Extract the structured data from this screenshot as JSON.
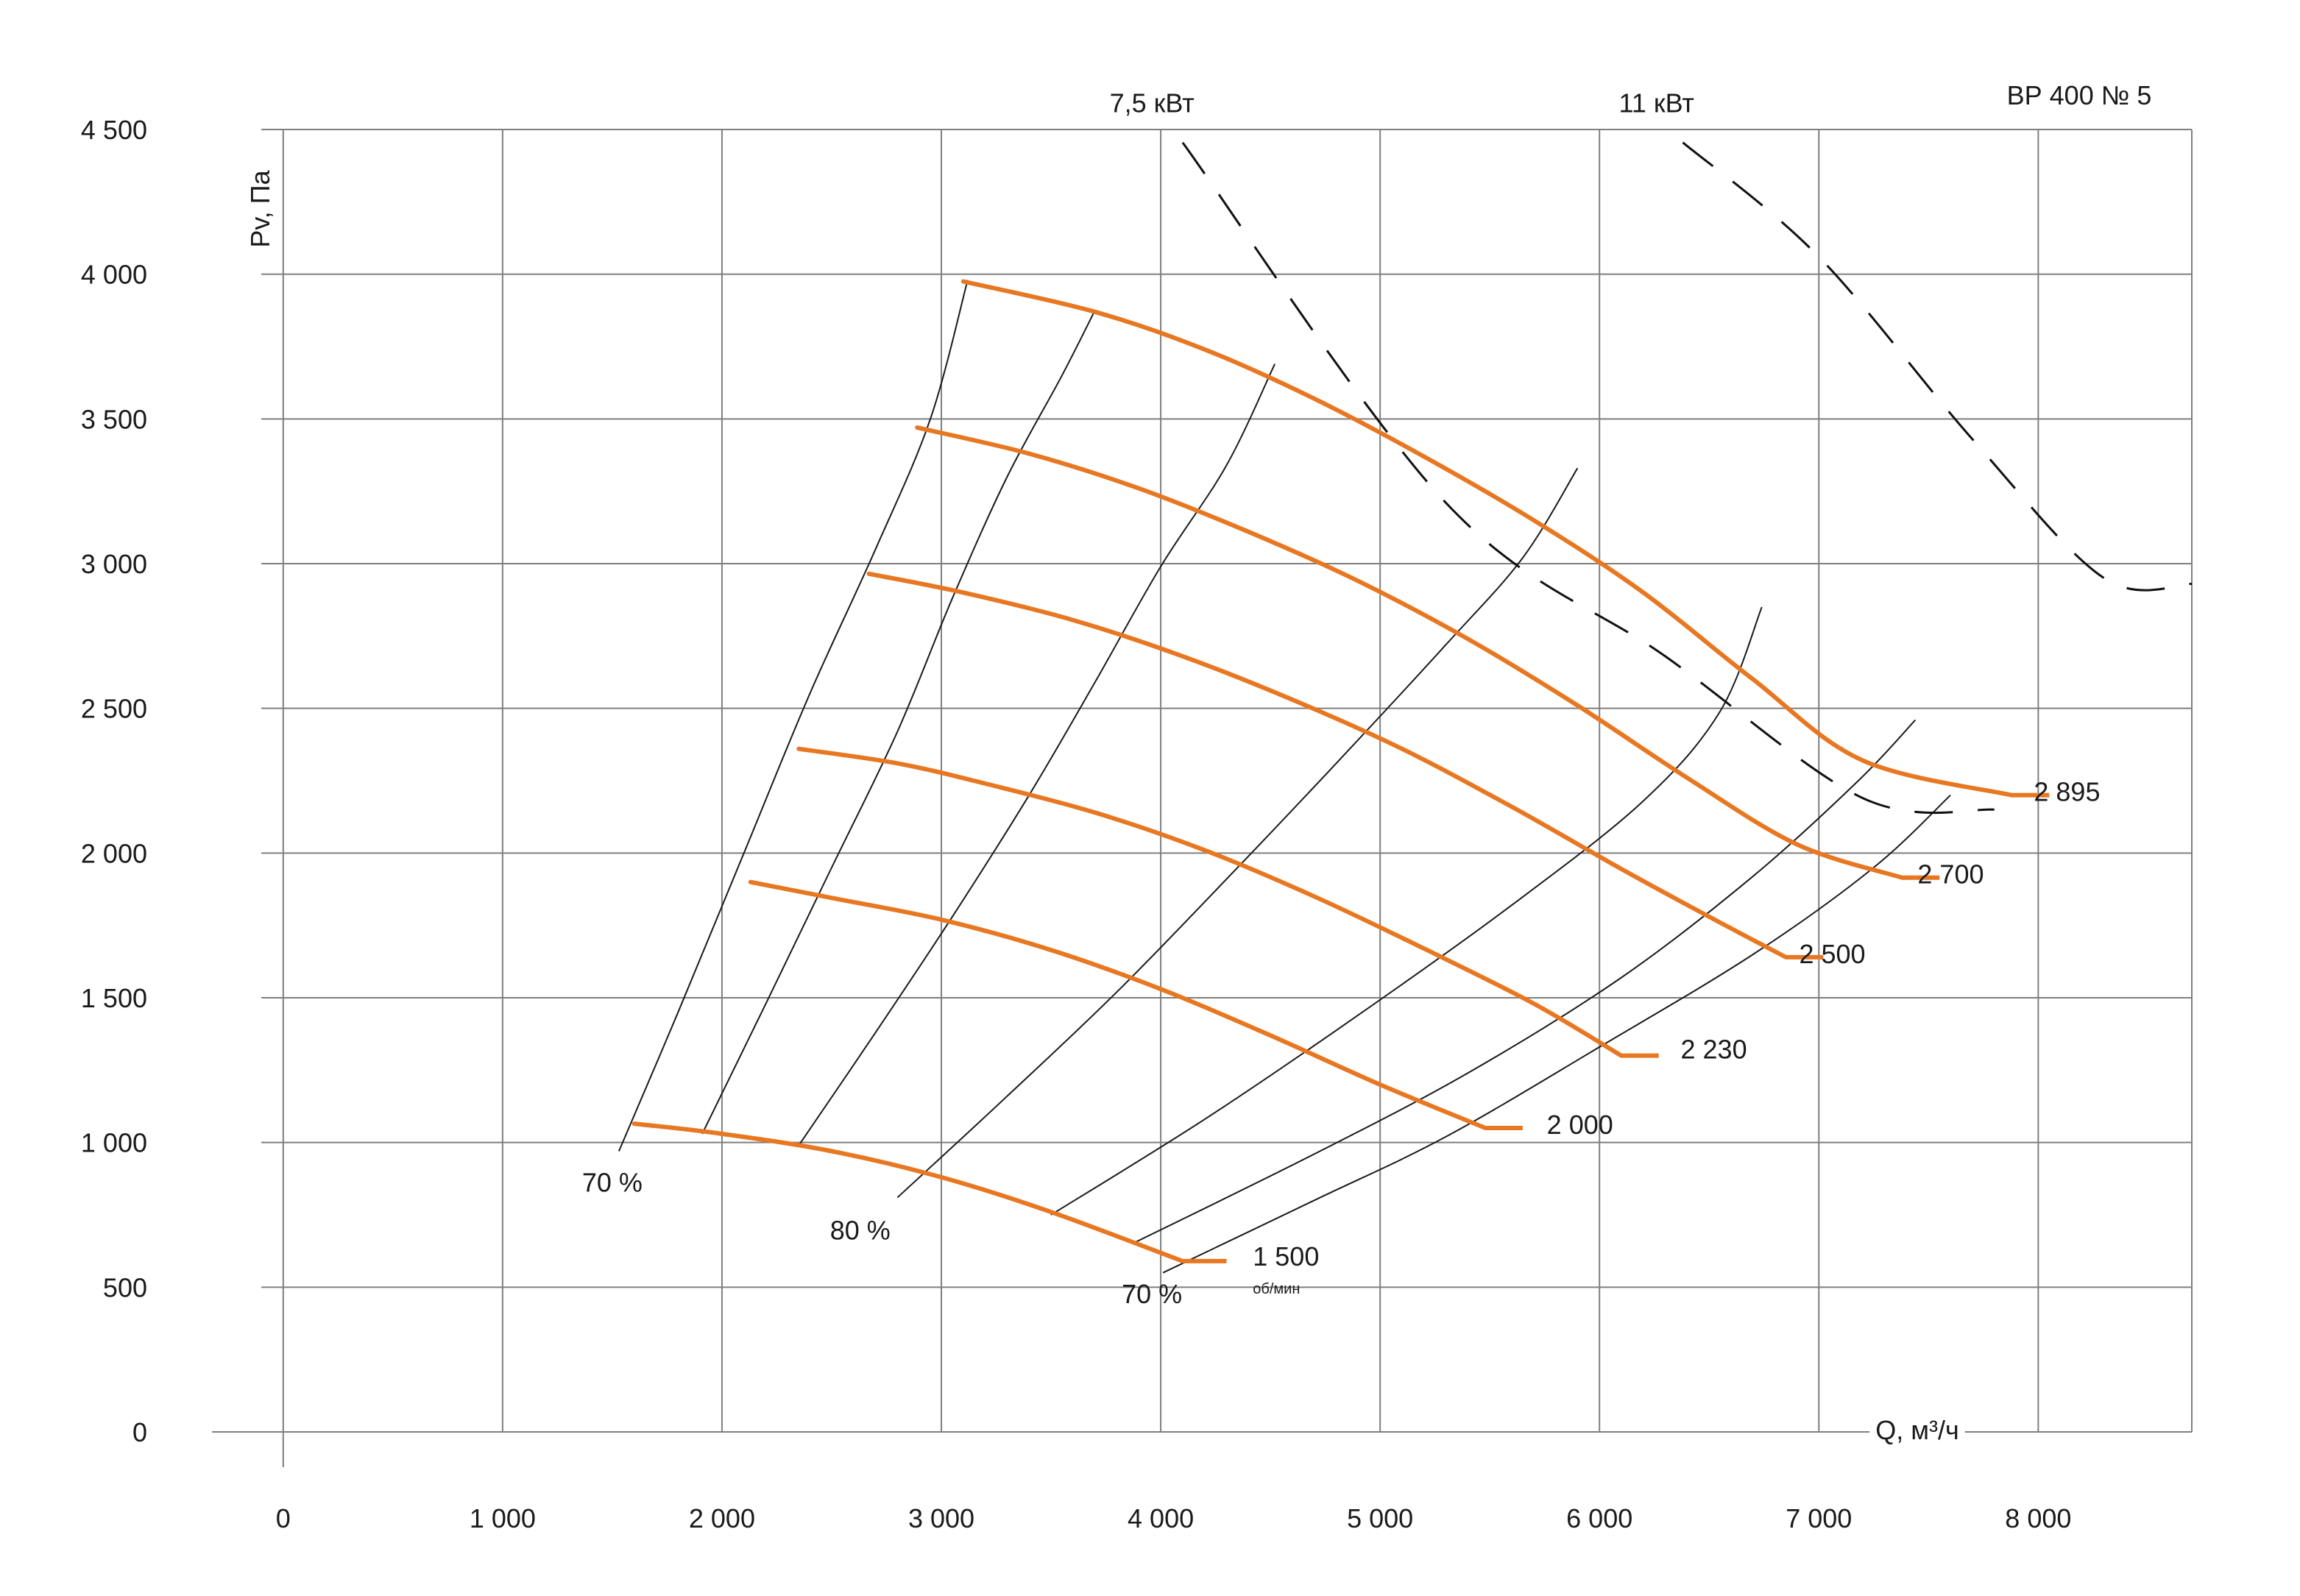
{
  "chart_data": {
    "type": "line",
    "title": "ВР 400 № 5",
    "xlabel": "Q, м³/ч",
    "ylabel": "Pv, Па",
    "xlim": [
      -100,
      8700
    ],
    "ylim": [
      0,
      4500
    ],
    "x_ticks": [
      0,
      1000,
      2000,
      3000,
      4000,
      5000,
      6000,
      7000,
      8000
    ],
    "x_tick_labels": [
      "0",
      "1 000",
      "2 000",
      "3 000",
      "4 000",
      "5 000",
      "6 000",
      "7 000",
      "8 000"
    ],
    "y_ticks": [
      0,
      500,
      1000,
      1500,
      2000,
      2500,
      3000,
      3500,
      4000,
      4500
    ],
    "y_tick_labels": [
      "0",
      "500",
      "1 000",
      "1 500",
      "2 000",
      "2 500",
      "3 000",
      "3 500",
      "4 000",
      "4 500"
    ],
    "grid": true,
    "colors": {
      "curve": "#e87722",
      "grid": "#7f7f7f",
      "text": "#1a1a1a"
    },
    "series": [
      {
        "name": "1 500",
        "unit": "об/мин",
        "label_point": [
          4420,
          575
        ],
        "points": [
          [
            1600,
            1065
          ],
          [
            2000,
            1030
          ],
          [
            2500,
            970
          ],
          [
            3000,
            880
          ],
          [
            3500,
            760
          ],
          [
            4100,
            590
          ]
        ],
        "end": [
          4300,
          590
        ]
      },
      {
        "name": "2 000",
        "label_point": [
          5760,
          1030
        ],
        "points": [
          [
            2130,
            1900
          ],
          [
            2500,
            1845
          ],
          [
            3000,
            1770
          ],
          [
            3500,
            1665
          ],
          [
            4000,
            1530
          ],
          [
            4500,
            1370
          ],
          [
            5000,
            1200
          ],
          [
            5480,
            1050
          ]
        ],
        "end": [
          5650,
          1050
        ]
      },
      {
        "name": "2 230",
        "label_point": [
          6370,
          1290
        ],
        "points": [
          [
            2350,
            2360
          ],
          [
            2800,
            2310
          ],
          [
            3200,
            2240
          ],
          [
            3700,
            2140
          ],
          [
            4200,
            2010
          ],
          [
            4700,
            1850
          ],
          [
            5200,
            1670
          ],
          [
            5700,
            1480
          ],
          [
            6100,
            1300
          ]
        ],
        "end": [
          6270,
          1300
        ]
      },
      {
        "name": "2 500",
        "label_point": [
          6910,
          1620
        ],
        "points": [
          [
            2670,
            2965
          ],
          [
            3100,
            2900
          ],
          [
            3600,
            2805
          ],
          [
            4100,
            2680
          ],
          [
            4600,
            2530
          ],
          [
            5100,
            2360
          ],
          [
            5600,
            2160
          ],
          [
            6100,
            1945
          ],
          [
            6500,
            1780
          ],
          [
            6850,
            1640
          ]
        ],
        "end": [
          7020,
          1640
        ]
      },
      {
        "name": "2 700",
        "label_point": [
          7450,
          1895
        ],
        "points": [
          [
            2890,
            3470
          ],
          [
            3400,
            3380
          ],
          [
            3900,
            3260
          ],
          [
            4400,
            3110
          ],
          [
            4900,
            2940
          ],
          [
            5400,
            2740
          ],
          [
            5900,
            2510
          ],
          [
            6400,
            2260
          ],
          [
            6900,
            2030
          ],
          [
            7380,
            1915
          ]
        ],
        "end": [
          7550,
          1915
        ]
      },
      {
        "name": "2 895",
        "label_point": [
          7980,
          2180
        ],
        "points": [
          [
            3100,
            3975
          ],
          [
            3700,
            3870
          ],
          [
            4200,
            3740
          ],
          [
            4700,
            3570
          ],
          [
            5200,
            3370
          ],
          [
            5700,
            3150
          ],
          [
            6200,
            2900
          ],
          [
            6700,
            2600
          ],
          [
            7200,
            2320
          ],
          [
            7880,
            2200
          ]
        ],
        "end": [
          8050,
          2200
        ]
      }
    ],
    "rays": [
      [
        [
          1530,
          970
        ],
        [
          1800,
          1450
        ],
        [
          2100,
          2000
        ],
        [
          2400,
          2550
        ],
        [
          2700,
          3050
        ],
        [
          2950,
          3500
        ],
        [
          3120,
          3980
        ]
      ],
      [
        [
          1910,
          1030
        ],
        [
          2200,
          1480
        ],
        [
          2500,
          1950
        ],
        [
          2800,
          2420
        ],
        [
          3050,
          2880
        ],
        [
          3300,
          3300
        ],
        [
          3550,
          3650
        ],
        [
          3700,
          3875
        ]
      ],
      [
        [
          2350,
          990
        ],
        [
          2700,
          1380
        ],
        [
          3050,
          1780
        ],
        [
          3400,
          2200
        ],
        [
          3700,
          2590
        ],
        [
          4000,
          2990
        ],
        [
          4300,
          3340
        ],
        [
          4520,
          3690
        ]
      ],
      [
        [
          2800,
          810
        ],
        [
          3300,
          1160
        ],
        [
          3800,
          1520
        ],
        [
          4300,
          1910
        ],
        [
          4800,
          2310
        ],
        [
          5300,
          2720
        ],
        [
          5650,
          3020
        ],
        [
          5900,
          3330
        ]
      ],
      [
        [
          3500,
          750
        ],
        [
          4200,
          1080
        ],
        [
          4900,
          1440
        ],
        [
          5600,
          1820
        ],
        [
          6200,
          2180
        ],
        [
          6550,
          2490
        ],
        [
          6740,
          2850
        ]
      ],
      [
        [
          3870,
          650
        ],
        [
          4700,
          960
        ],
        [
          5400,
          1240
        ],
        [
          6100,
          1570
        ],
        [
          6700,
          1920
        ],
        [
          7180,
          2250
        ],
        [
          7440,
          2460
        ]
      ],
      [
        [
          4010,
          550
        ],
        [
          4700,
          800
        ],
        [
          5300,
          1020
        ],
        [
          6000,
          1330
        ],
        [
          6700,
          1650
        ],
        [
          7250,
          1950
        ],
        [
          7600,
          2200
        ]
      ]
    ],
    "power_lines": [
      {
        "label": "7,5 кВт",
        "label_point": [
          3960,
          4560
        ],
        "points": [
          [
            4100,
            4455
          ],
          [
            5300,
            3210
          ],
          [
            6300,
            2680
          ],
          [
            7200,
            2190
          ],
          [
            7800,
            2150
          ]
        ]
      },
      {
        "label": "11 кВт",
        "label_point": [
          6260,
          4560
        ],
        "points": [
          [
            6380,
            4455
          ],
          [
            7000,
            4060
          ],
          [
            7700,
            3430
          ],
          [
            8300,
            2950
          ],
          [
            8700,
            2930
          ]
        ]
      }
    ],
    "efficiency_labels": [
      {
        "text": "70 %",
        "x": 1500,
        "y": 830
      },
      {
        "text": "80 %",
        "x": 2630,
        "y": 665
      },
      {
        "text": "70 %",
        "x": 3960,
        "y": 445
      }
    ]
  }
}
